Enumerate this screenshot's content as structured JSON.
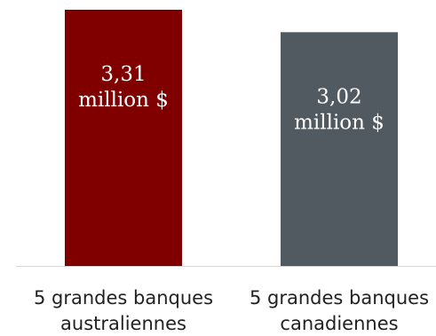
{
  "chart_data": {
    "type": "bar",
    "categories": [
      [
        "5 grandes banques",
        "australiennes"
      ],
      [
        "5 grandes banques",
        "canadiennes"
      ]
    ],
    "values": [
      3.31,
      3.02
    ],
    "value_labels": [
      [
        "3,31",
        "million $"
      ],
      [
        "3,02",
        "million $"
      ]
    ],
    "colors": [
      "#800000",
      "#515a60"
    ],
    "ylim": [
      0,
      3.31
    ],
    "grid": false,
    "legend": "none"
  }
}
